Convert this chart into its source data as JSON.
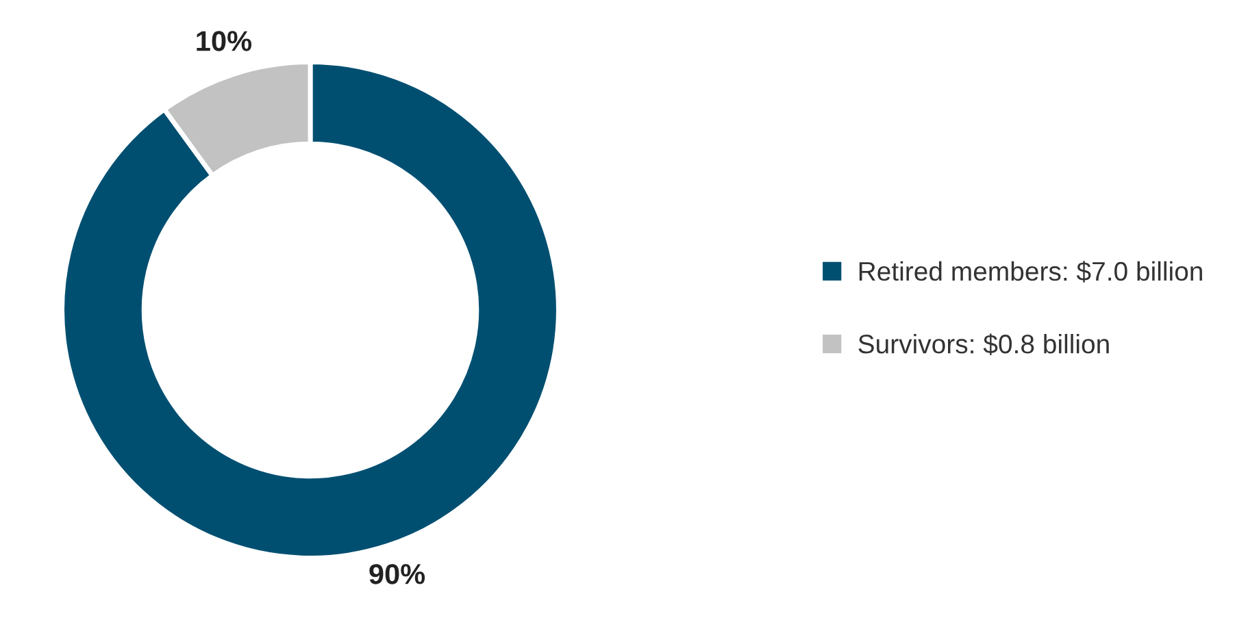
{
  "chart_data": {
    "type": "donut",
    "categories": [
      "Retired members: $7.0 billion",
      "Survivors: $0.8 billion"
    ],
    "values": [
      90,
      10
    ],
    "colors": [
      "#004f71",
      "#c2c2c2"
    ],
    "value_labels": [
      "90%",
      "10%"
    ],
    "legend": "right"
  }
}
